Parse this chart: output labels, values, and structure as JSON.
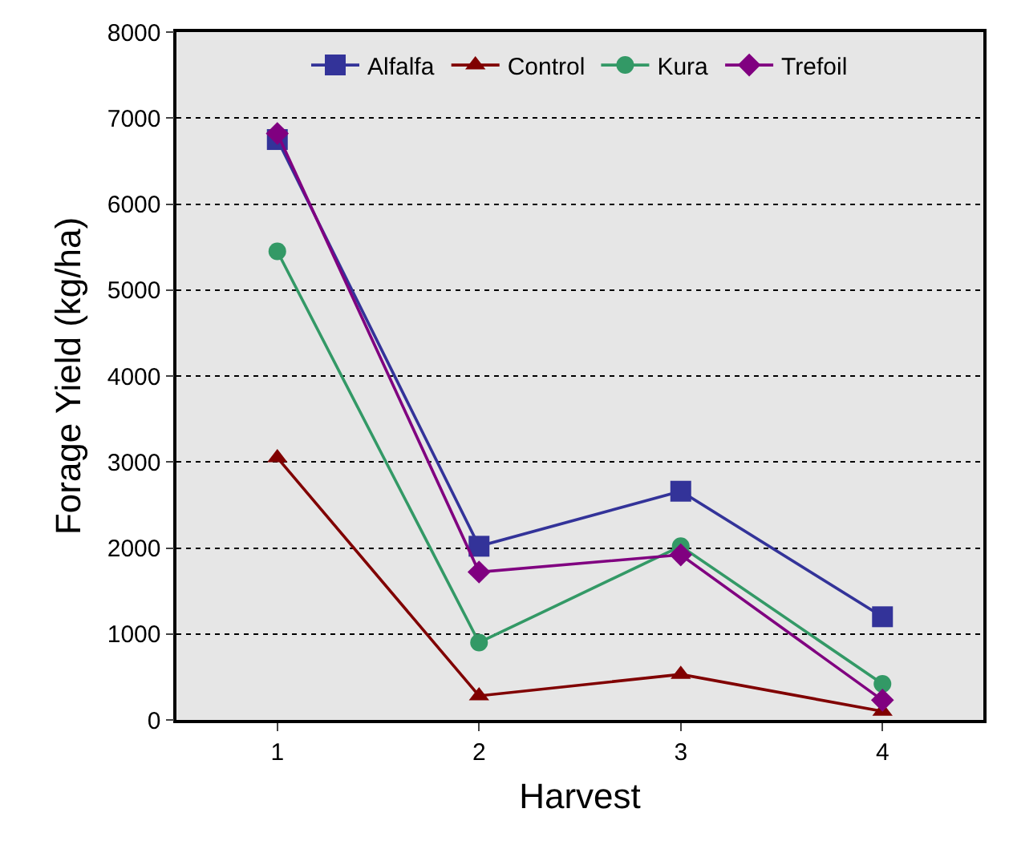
{
  "chart_data": {
    "type": "line",
    "xlabel": "Harvest",
    "ylabel": "Forage Yield (kg/ha)",
    "categories": [
      "1",
      "2",
      "3",
      "4"
    ],
    "ylim": [
      0,
      8000
    ],
    "yticks": [
      0,
      1000,
      2000,
      3000,
      4000,
      5000,
      6000,
      7000,
      8000
    ],
    "grid": "y",
    "legend": "top",
    "series": [
      {
        "name": "Alfalfa",
        "color": "#333399",
        "marker": "square",
        "values": [
          6750,
          2020,
          2660,
          1200
        ]
      },
      {
        "name": "Control",
        "color": "#800000",
        "marker": "triangle",
        "values": [
          3050,
          280,
          530,
          100
        ]
      },
      {
        "name": "Kura",
        "color": "#339966",
        "marker": "circle",
        "values": [
          5450,
          900,
          2020,
          420
        ]
      },
      {
        "name": "Trefoil",
        "color": "#800080",
        "marker": "diamond",
        "values": [
          6820,
          1720,
          1920,
          230
        ]
      }
    ]
  }
}
